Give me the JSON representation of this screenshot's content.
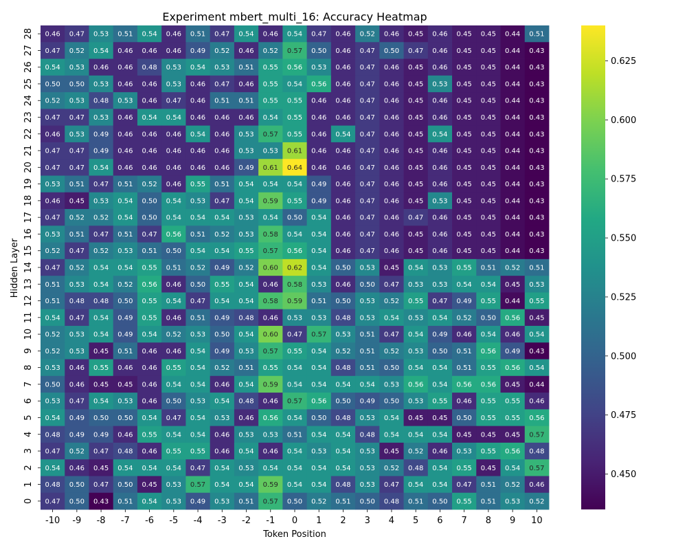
{
  "chart_data": {
    "type": "heatmap",
    "title": "Experiment mbert_multi_16: Accuracy Heatmap",
    "xlabel": "Token Position",
    "ylabel": "Hidden Layer",
    "x": [
      "-10",
      "-9",
      "-8",
      "-7",
      "-6",
      "-5",
      "-4",
      "-3",
      "-2",
      "-1",
      "0",
      "1",
      "2",
      "3",
      "4",
      "5",
      "6",
      "7",
      "8",
      "9",
      "10"
    ],
    "y": [
      "28",
      "27",
      "26",
      "25",
      "24",
      "23",
      "22",
      "21",
      "20",
      "19",
      "18",
      "17",
      "16",
      "15",
      "14",
      "13",
      "12",
      "11",
      "10",
      "9",
      "8",
      "7",
      "6",
      "5",
      "4",
      "3",
      "2",
      "1",
      "0"
    ],
    "values": [
      [
        0.46,
        0.47,
        0.53,
        0.51,
        0.54,
        0.46,
        0.51,
        0.47,
        0.54,
        0.46,
        0.54,
        0.47,
        0.46,
        0.52,
        0.46,
        0.45,
        0.46,
        0.45,
        0.45,
        0.44,
        0.51
      ],
      [
        0.47,
        0.52,
        0.54,
        0.46,
        0.46,
        0.46,
        0.49,
        0.52,
        0.46,
        0.52,
        0.57,
        0.5,
        0.46,
        0.47,
        0.5,
        0.47,
        0.46,
        0.45,
        0.45,
        0.44,
        0.43
      ],
      [
        0.54,
        0.53,
        0.46,
        0.46,
        0.48,
        0.53,
        0.54,
        0.53,
        0.51,
        0.55,
        0.56,
        0.53,
        0.46,
        0.47,
        0.46,
        0.45,
        0.46,
        0.45,
        0.45,
        0.44,
        0.43
      ],
      [
        0.5,
        0.5,
        0.53,
        0.46,
        0.46,
        0.53,
        0.46,
        0.47,
        0.46,
        0.55,
        0.54,
        0.56,
        0.46,
        0.47,
        0.46,
        0.45,
        0.53,
        0.45,
        0.45,
        0.44,
        0.43
      ],
      [
        0.52,
        0.53,
        0.48,
        0.53,
        0.46,
        0.47,
        0.46,
        0.51,
        0.51,
        0.55,
        0.55,
        0.46,
        0.46,
        0.47,
        0.46,
        0.45,
        0.46,
        0.45,
        0.45,
        0.44,
        0.43
      ],
      [
        0.47,
        0.47,
        0.53,
        0.46,
        0.54,
        0.54,
        0.46,
        0.46,
        0.46,
        0.54,
        0.55,
        0.46,
        0.46,
        0.47,
        0.46,
        0.45,
        0.46,
        0.45,
        0.45,
        0.44,
        0.43
      ],
      [
        0.46,
        0.53,
        0.49,
        0.46,
        0.46,
        0.46,
        0.54,
        0.46,
        0.53,
        0.57,
        0.55,
        0.46,
        0.54,
        0.47,
        0.46,
        0.45,
        0.54,
        0.45,
        0.45,
        0.44,
        0.43
      ],
      [
        0.47,
        0.47,
        0.49,
        0.46,
        0.46,
        0.46,
        0.46,
        0.46,
        0.53,
        0.53,
        0.61,
        0.46,
        0.46,
        0.47,
        0.46,
        0.45,
        0.46,
        0.45,
        0.45,
        0.44,
        0.43
      ],
      [
        0.47,
        0.47,
        0.54,
        0.46,
        0.46,
        0.46,
        0.46,
        0.46,
        0.49,
        0.61,
        0.64,
        0.46,
        0.46,
        0.47,
        0.46,
        0.45,
        0.46,
        0.45,
        0.45,
        0.44,
        0.43
      ],
      [
        0.53,
        0.51,
        0.47,
        0.51,
        0.52,
        0.46,
        0.55,
        0.51,
        0.54,
        0.54,
        0.54,
        0.49,
        0.46,
        0.47,
        0.46,
        0.45,
        0.46,
        0.45,
        0.45,
        0.44,
        0.43
      ],
      [
        0.46,
        0.45,
        0.53,
        0.54,
        0.5,
        0.54,
        0.53,
        0.47,
        0.54,
        0.59,
        0.55,
        0.49,
        0.46,
        0.47,
        0.46,
        0.45,
        0.53,
        0.45,
        0.45,
        0.44,
        0.43
      ],
      [
        0.47,
        0.52,
        0.52,
        0.54,
        0.5,
        0.54,
        0.54,
        0.54,
        0.53,
        0.54,
        0.5,
        0.54,
        0.46,
        0.47,
        0.46,
        0.47,
        0.46,
        0.45,
        0.45,
        0.44,
        0.43
      ],
      [
        0.53,
        0.51,
        0.47,
        0.51,
        0.47,
        0.56,
        0.51,
        0.52,
        0.53,
        0.58,
        0.54,
        0.54,
        0.46,
        0.47,
        0.46,
        0.45,
        0.46,
        0.45,
        0.45,
        0.44,
        0.43
      ],
      [
        0.52,
        0.47,
        0.52,
        0.53,
        0.51,
        0.5,
        0.54,
        0.54,
        0.55,
        0.57,
        0.56,
        0.54,
        0.46,
        0.47,
        0.46,
        0.45,
        0.46,
        0.45,
        0.45,
        0.44,
        0.43
      ],
      [
        0.47,
        0.52,
        0.54,
        0.54,
        0.55,
        0.51,
        0.52,
        0.49,
        0.52,
        0.6,
        0.62,
        0.54,
        0.5,
        0.53,
        0.45,
        0.54,
        0.53,
        0.55,
        0.51,
        0.52,
        0.51
      ],
      [
        0.51,
        0.53,
        0.54,
        0.52,
        0.56,
        0.46,
        0.5,
        0.55,
        0.54,
        0.46,
        0.58,
        0.53,
        0.46,
        0.5,
        0.47,
        0.53,
        0.53,
        0.54,
        0.54,
        0.45,
        0.53
      ],
      [
        0.51,
        0.48,
        0.48,
        0.5,
        0.55,
        0.54,
        0.47,
        0.54,
        0.54,
        0.58,
        0.59,
        0.51,
        0.5,
        0.53,
        0.52,
        0.55,
        0.47,
        0.49,
        0.55,
        0.44,
        0.55
      ],
      [
        0.54,
        0.47,
        0.54,
        0.49,
        0.55,
        0.46,
        0.51,
        0.49,
        0.48,
        0.46,
        0.53,
        0.53,
        0.48,
        0.53,
        0.54,
        0.53,
        0.54,
        0.52,
        0.5,
        0.56,
        0.45
      ],
      [
        0.52,
        0.53,
        0.54,
        0.49,
        0.54,
        0.52,
        0.53,
        0.5,
        0.54,
        0.6,
        0.47,
        0.57,
        0.53,
        0.51,
        0.47,
        0.54,
        0.49,
        0.46,
        0.54,
        0.46,
        0.54
      ],
      [
        0.52,
        0.53,
        0.45,
        0.51,
        0.46,
        0.46,
        0.54,
        0.49,
        0.53,
        0.57,
        0.55,
        0.54,
        0.52,
        0.51,
        0.52,
        0.53,
        0.5,
        0.51,
        0.56,
        0.49,
        0.43
      ],
      [
        0.53,
        0.46,
        0.55,
        0.46,
        0.46,
        0.55,
        0.54,
        0.52,
        0.51,
        0.55,
        0.54,
        0.54,
        0.48,
        0.51,
        0.5,
        0.54,
        0.54,
        0.51,
        0.55,
        0.56,
        0.54
      ],
      [
        0.5,
        0.46,
        0.45,
        0.45,
        0.46,
        0.54,
        0.54,
        0.46,
        0.54,
        0.59,
        0.54,
        0.54,
        0.54,
        0.54,
        0.53,
        0.56,
        0.54,
        0.56,
        0.56,
        0.45,
        0.44
      ],
      [
        0.53,
        0.47,
        0.54,
        0.53,
        0.46,
        0.5,
        0.53,
        0.54,
        0.48,
        0.46,
        0.57,
        0.56,
        0.5,
        0.49,
        0.5,
        0.53,
        0.55,
        0.46,
        0.55,
        0.55,
        0.46
      ],
      [
        0.54,
        0.49,
        0.5,
        0.5,
        0.54,
        0.47,
        0.54,
        0.53,
        0.46,
        0.56,
        0.54,
        0.5,
        0.48,
        0.53,
        0.54,
        0.45,
        0.45,
        0.5,
        0.55,
        0.55,
        0.56
      ],
      [
        0.48,
        0.49,
        0.49,
        0.46,
        0.55,
        0.54,
        0.54,
        0.46,
        0.53,
        0.53,
        0.51,
        0.54,
        0.54,
        0.48,
        0.54,
        0.54,
        0.54,
        0.45,
        0.45,
        0.45,
        0.57
      ],
      [
        0.47,
        0.52,
        0.47,
        0.48,
        0.46,
        0.55,
        0.55,
        0.46,
        0.54,
        0.46,
        0.54,
        0.53,
        0.54,
        0.53,
        0.45,
        0.52,
        0.46,
        0.53,
        0.55,
        0.56,
        0.48
      ],
      [
        0.54,
        0.46,
        0.45,
        0.54,
        0.54,
        0.54,
        0.47,
        0.54,
        0.53,
        0.54,
        0.54,
        0.54,
        0.54,
        0.53,
        0.52,
        0.48,
        0.54,
        0.55,
        0.45,
        0.54,
        0.57
      ],
      [
        0.48,
        0.5,
        0.47,
        0.5,
        0.45,
        0.53,
        0.57,
        0.54,
        0.54,
        0.59,
        0.54,
        0.54,
        0.48,
        0.53,
        0.47,
        0.54,
        0.54,
        0.47,
        0.51,
        0.52,
        0.46
      ],
      [
        0.47,
        0.5,
        0.43,
        0.51,
        0.54,
        0.53,
        0.49,
        0.53,
        0.51,
        0.57,
        0.5,
        0.52,
        0.51,
        0.5,
        0.48,
        0.51,
        0.5,
        0.55,
        0.51,
        0.53,
        0.52
      ]
    ],
    "vmin": 0.435,
    "vmax": 0.64,
    "colormap": "viridis",
    "colorbar_ticks": [
      "0.450",
      "0.475",
      "0.500",
      "0.525",
      "0.550",
      "0.575",
      "0.600",
      "0.625"
    ],
    "annotations": true,
    "grid": false
  }
}
